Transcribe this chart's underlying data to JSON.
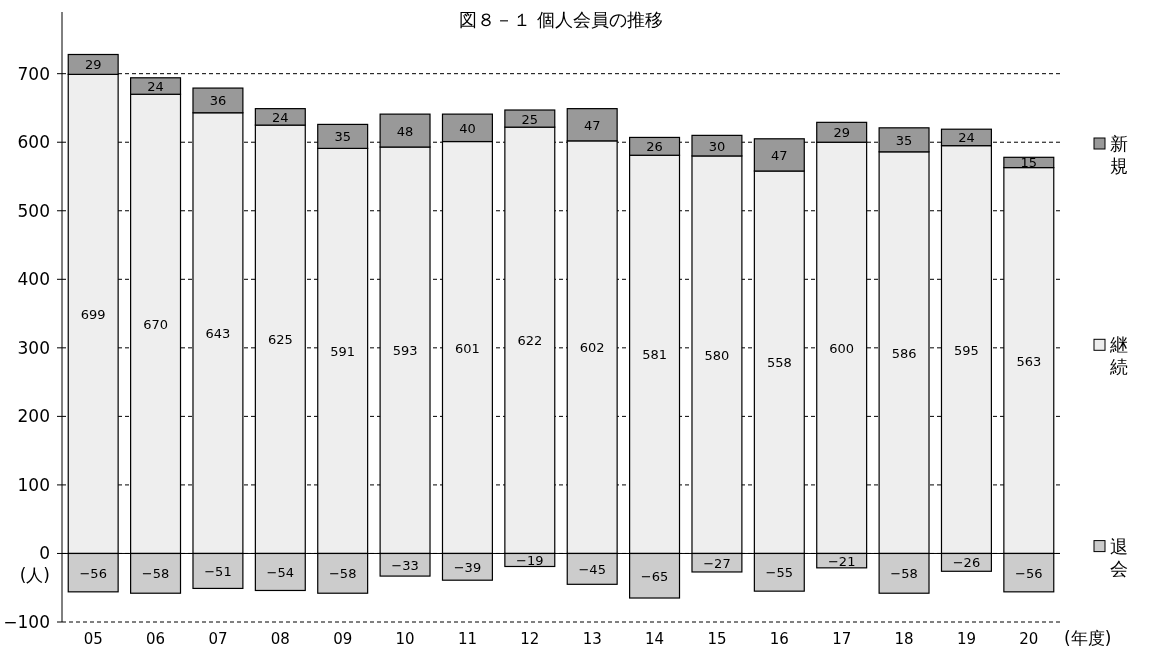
{
  "chart_data": {
    "type": "bar",
    "title": "図８－１ 個人会員の推移",
    "xlabel": "(年度)",
    "ylabel": "(人)",
    "categories": [
      "05",
      "06",
      "07",
      "08",
      "09",
      "10",
      "11",
      "12",
      "13",
      "14",
      "15",
      "16",
      "17",
      "18",
      "19",
      "20"
    ],
    "stacked": true,
    "ylim": [
      -100,
      790
    ],
    "yticks": [
      {
        "value": -100,
        "label": "−100"
      },
      0,
      100,
      200,
      300,
      400,
      500,
      600,
      700
    ],
    "grid": "y",
    "legend": "right",
    "data_labels": true,
    "series": [
      {
        "name": "継続",
        "color": "#eeeeee",
        "values": [
          699,
          670,
          643,
          625,
          591,
          593,
          601,
          622,
          602,
          581,
          580,
          558,
          600,
          586,
          595,
          563
        ]
      },
      {
        "name": "新規",
        "color": "#999999",
        "values": [
          29,
          24,
          36,
          24,
          35,
          48,
          40,
          25,
          47,
          26,
          30,
          47,
          29,
          35,
          24,
          15
        ]
      },
      {
        "name": "退会",
        "color": "#cccccc",
        "values": [
          -56,
          -58,
          -51,
          -54,
          -58,
          -33,
          -39,
          -19,
          -45,
          -65,
          -27,
          -55,
          -21,
          -58,
          -26,
          -56
        ]
      }
    ]
  }
}
